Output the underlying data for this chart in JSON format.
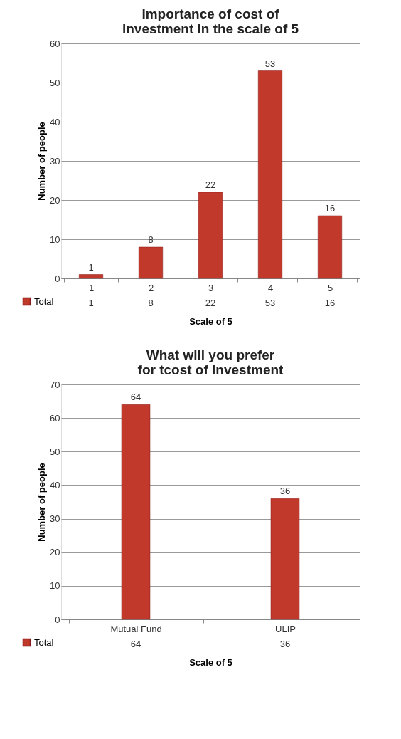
{
  "chart_data": [
    {
      "type": "bar",
      "title": "Importance of cost of investment in the scale of 5",
      "xlabel": "Scale of 5",
      "ylabel": "Number of people",
      "categories": [
        "1",
        "2",
        "3",
        "4",
        "5"
      ],
      "series": [
        {
          "name": "Total",
          "color": "#c0392b",
          "values": [
            1,
            8,
            22,
            53,
            16
          ]
        }
      ],
      "annotations": [
        "1",
        "8",
        "22",
        "53",
        "16"
      ],
      "ylim": [
        0,
        60
      ],
      "yticks": [
        0,
        10,
        20,
        30,
        40,
        50,
        60
      ],
      "grid": "y",
      "data_labels": true,
      "legend": "bottom"
    },
    {
      "type": "bar",
      "title": "What will you prefer for tcost of investment",
      "xlabel": "Scale of 5",
      "ylabel": "Number of people",
      "categories": [
        "Mutual Fund",
        "ULIP"
      ],
      "series": [
        {
          "name": "Total",
          "color": "#c0392b",
          "values": [
            64,
            36
          ]
        }
      ],
      "annotations": [
        "64",
        "36"
      ],
      "ylim": [
        0,
        70
      ],
      "yticks": [
        0,
        10,
        20,
        30,
        40,
        50,
        60,
        70
      ],
      "grid": "y",
      "data_labels": true,
      "legend": "bottom"
    }
  ]
}
